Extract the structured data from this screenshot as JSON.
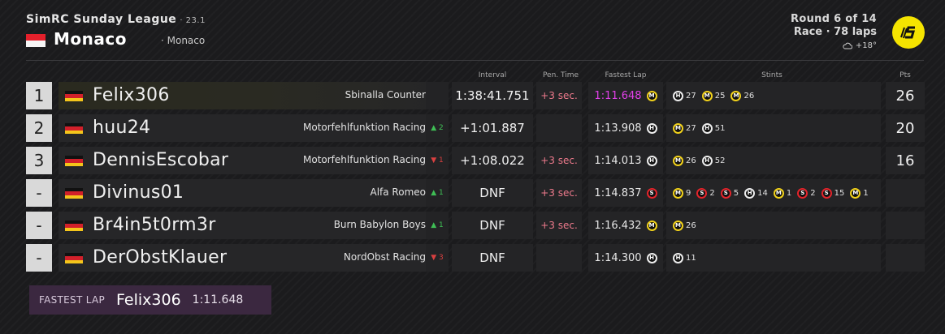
{
  "header": {
    "league": "SimRC Sunday League",
    "season": "· 23.1",
    "track": "Monaco",
    "track_sub": "· Monaco",
    "round": "Round 6 of 14",
    "race": "Race · 78 laps",
    "weather": "+18°",
    "weather_icon": "cloud-icon",
    "logo_icon": "league-logo-icon"
  },
  "columns": {
    "interval": "Interval",
    "pen_time": "Pen. Time",
    "fastest_lap": "Fastest Lap",
    "stints": "Stints",
    "pts": "Pts"
  },
  "colors": {
    "fastest_lap": "#e040e8",
    "penalty": "#ee7a8c",
    "delta_up": "#3fbf55",
    "delta_down": "#d84040",
    "medium": "#f2d21b",
    "soft": "#e3242b",
    "hard": "#eeeeee"
  },
  "rows": [
    {
      "pos": "1",
      "driver": "Felix306",
      "team": "Sbinalla Counter",
      "team_icon": "mercedes-icon",
      "delta": "",
      "interval": "1:38:41.751",
      "pen": "+3 sec.",
      "fastest_lap": "1:11.648",
      "fl_tyre": "M",
      "pts": "26",
      "stints": [
        {
          "t": "H",
          "l": "27"
        },
        {
          "t": "M",
          "l": "25"
        },
        {
          "t": "M",
          "l": "26"
        }
      ]
    },
    {
      "pos": "2",
      "driver": "huu24",
      "team": "Motorfehlfunktion Racing",
      "team_icon": "williams-icon",
      "delta": "^ 2",
      "interval": "+1:01.887",
      "pen": "",
      "fastest_lap": "1:13.908",
      "fl_tyre": "H",
      "pts": "20",
      "stints": [
        {
          "t": "M",
          "l": "27"
        },
        {
          "t": "H",
          "l": "51"
        }
      ]
    },
    {
      "pos": "3",
      "driver": "DennisEscobar",
      "team": "Motorfehlfunktion Racing",
      "team_icon": "williams-icon",
      "delta": "v 1",
      "interval": "+1:08.022",
      "pen": "+3 sec.",
      "fastest_lap": "1:14.013",
      "fl_tyre": "H",
      "pts": "16",
      "stints": [
        {
          "t": "M",
          "l": "26"
        },
        {
          "t": "H",
          "l": "52"
        }
      ]
    },
    {
      "pos": "-",
      "driver": "Divinus01",
      "team": "Alfa Romeo",
      "team_icon": "alfa-romeo-icon",
      "delta": "^ 1",
      "interval": "DNF",
      "pen": "+3 sec.",
      "fastest_lap": "1:14.837",
      "fl_tyre": "S",
      "pts": "",
      "stints": [
        {
          "t": "M",
          "l": "9"
        },
        {
          "t": "S",
          "l": "2"
        },
        {
          "t": "S",
          "l": "5"
        },
        {
          "t": "H",
          "l": "14"
        },
        {
          "t": "M",
          "l": "1"
        },
        {
          "t": "S",
          "l": "2"
        },
        {
          "t": "S",
          "l": "15"
        },
        {
          "t": "M",
          "l": "1"
        }
      ]
    },
    {
      "pos": "-",
      "driver": "Br4in5t0rm3r",
      "team": "Burn Babylon Boys",
      "team_icon": "haas-icon",
      "delta": "^ 1",
      "interval": "DNF",
      "pen": "+3 sec.",
      "fastest_lap": "1:16.432",
      "fl_tyre": "M",
      "pts": "",
      "stints": [
        {
          "t": "M",
          "l": "26"
        }
      ]
    },
    {
      "pos": "-",
      "driver": "DerObstKlauer",
      "team": "NordObst Racing",
      "team_icon": "red-bull-icon",
      "delta": "v 3",
      "interval": "DNF",
      "pen": "",
      "fastest_lap": "1:14.300",
      "fl_tyre": "H",
      "pts": "",
      "stints": [
        {
          "t": "H",
          "l": "11"
        }
      ]
    }
  ],
  "fastest_lap_box": {
    "label": "FASTEST LAP",
    "driver": "Felix306",
    "time": "1:11.648"
  }
}
